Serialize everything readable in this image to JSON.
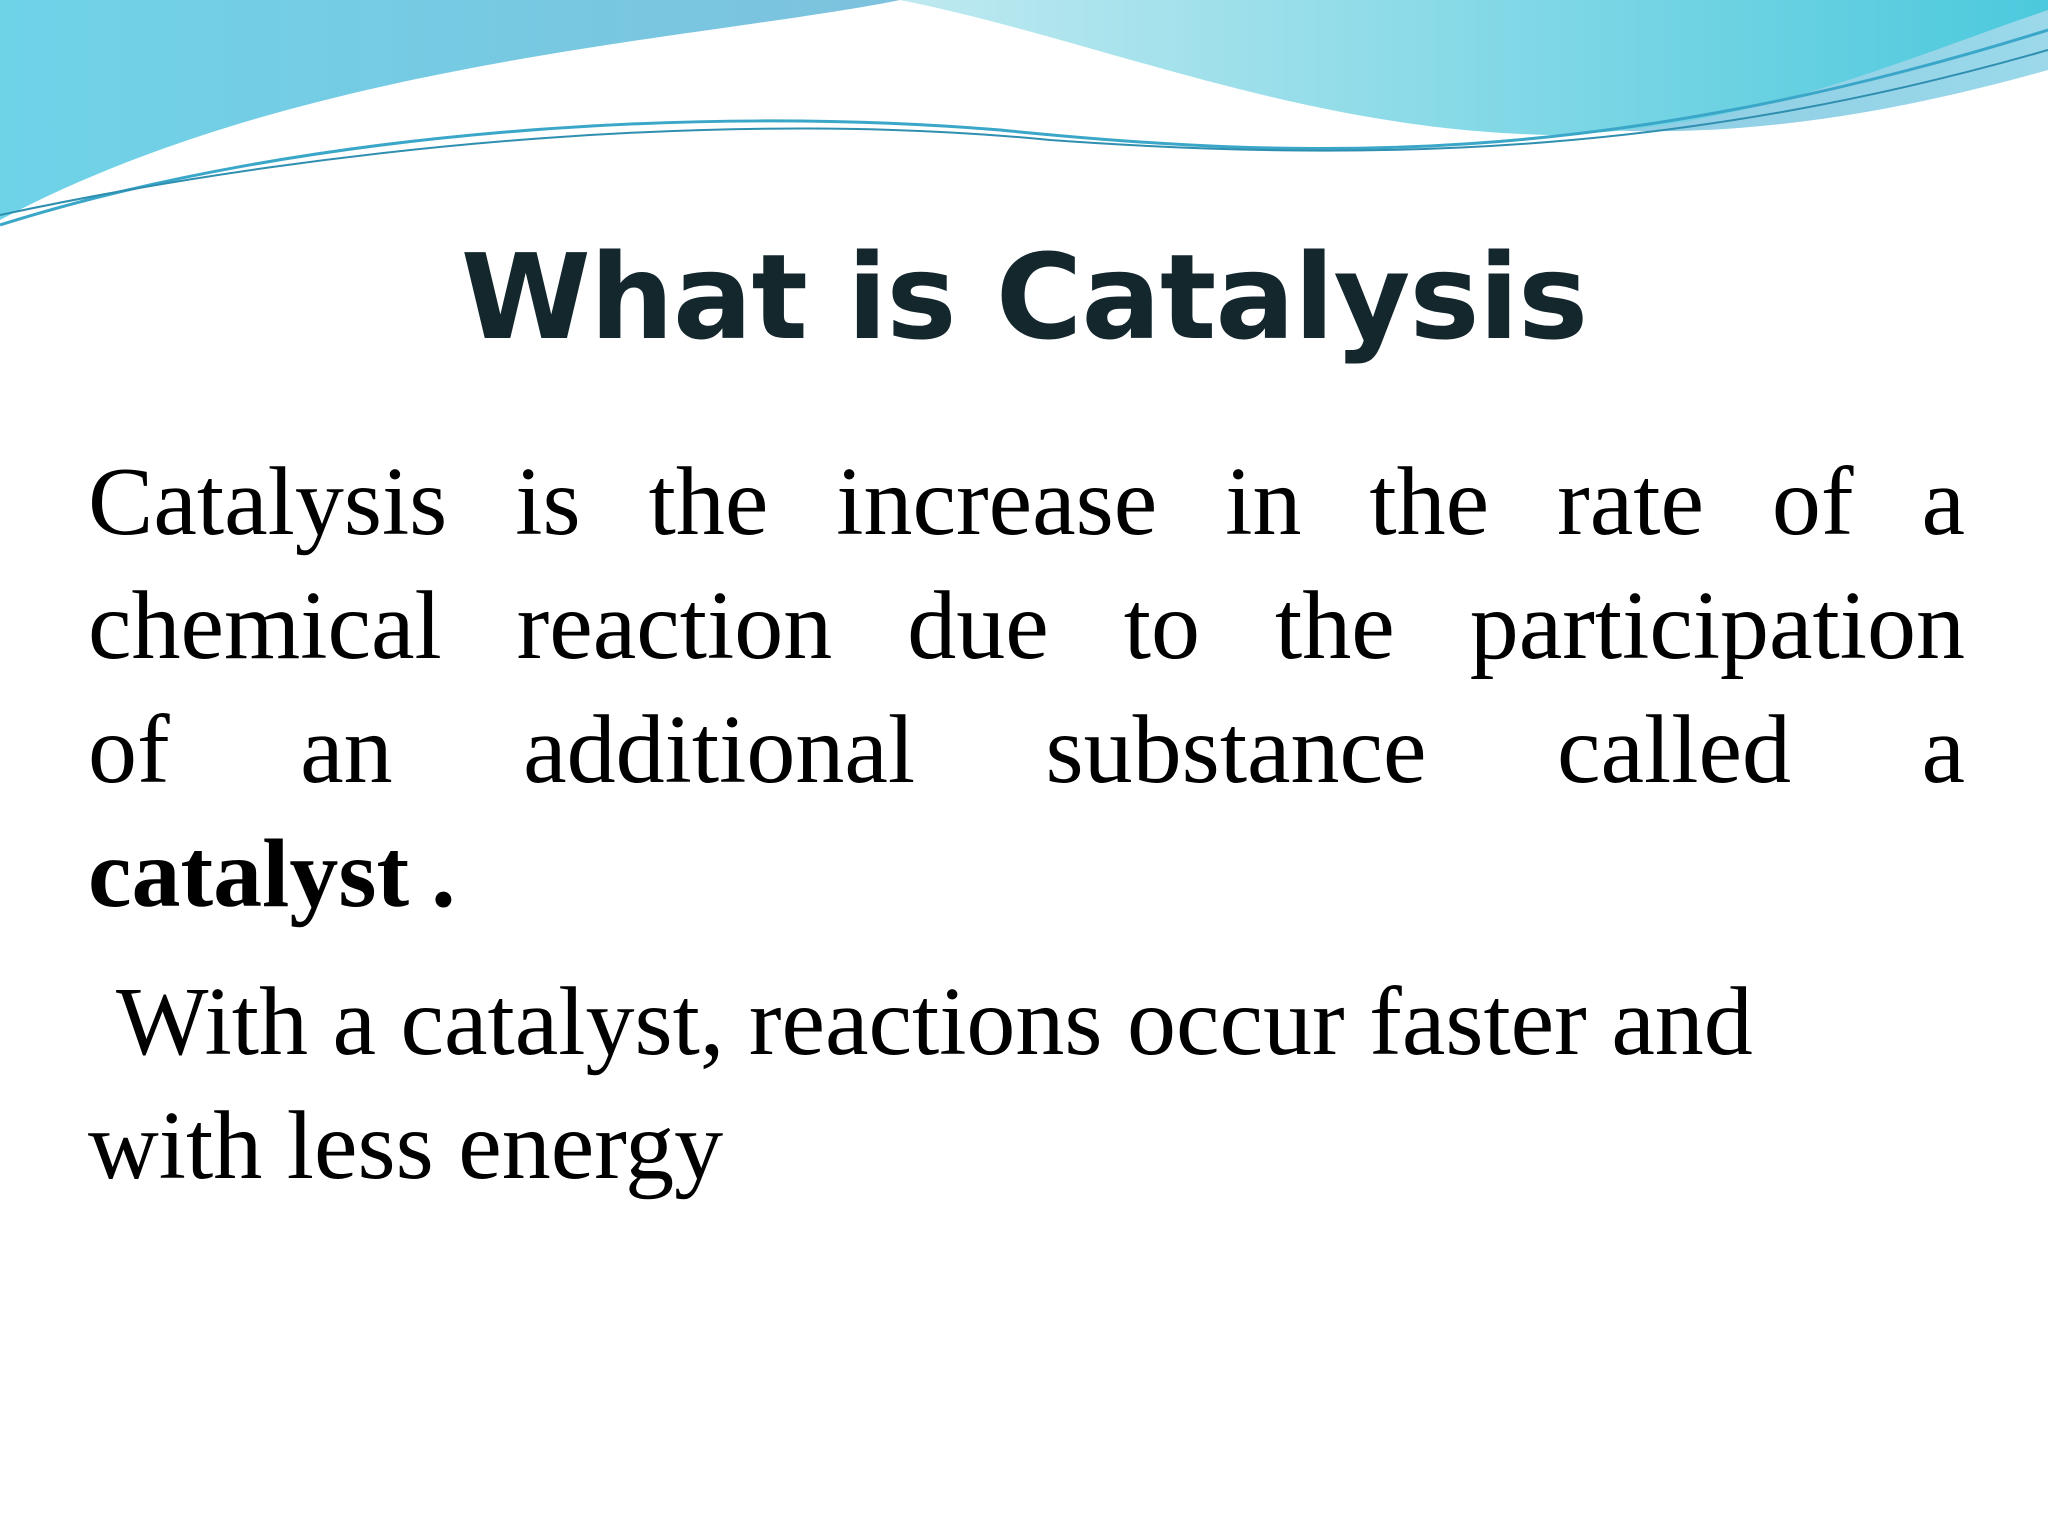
{
  "title": "What is Catalysis",
  "paragraphs": [
    {
      "lines": [
        "Catalysis is the increase in the rate of a",
        "chemical reaction due to the participation",
        "of an additional substance called a"
      ],
      "emphasis": "catalyst",
      "end": "."
    },
    {
      "lines": [
        "With a catalyst, reactions occur faster and",
        "with less energy"
      ]
    }
  ]
}
